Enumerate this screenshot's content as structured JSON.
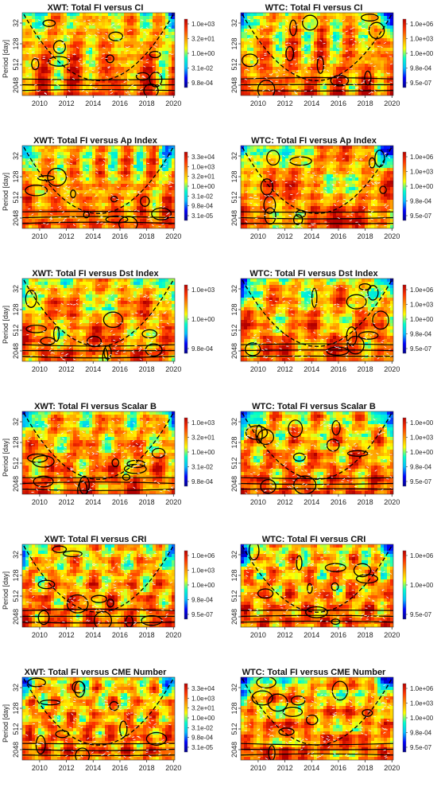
{
  "colors": {
    "scale": [
      "#00008b",
      "#0000ff",
      "#00bfff",
      "#00ffcc",
      "#ffff00",
      "#ff9900",
      "#ff3300",
      "#b30000"
    ],
    "contour": "#000000",
    "arrow": "#f0f0f0"
  },
  "chart_data": [
    {
      "type": "heatmap",
      "title": "XWT: Total FI versus CI",
      "ylabel": "Period [day]",
      "x_ticks": [
        "2010",
        "2012",
        "2014",
        "2016",
        "2018",
        "2020"
      ],
      "x_range": [
        2008.7,
        2020.1
      ],
      "y_ticks": [
        "32",
        "128",
        "512",
        "2048"
      ],
      "y_scale": "log2",
      "colorbar": [
        "1.0e+03",
        "3.2e+01",
        "1.0e+00",
        "3.1e-02",
        "9.8e-04"
      ],
      "cone_of_influence": true
    },
    {
      "type": "heatmap",
      "title": "WTC: Total FI versus CI",
      "ylabel": "",
      "x_ticks": [
        "2010",
        "2012",
        "2014",
        "2016",
        "2018",
        "2020"
      ],
      "x_range": [
        2008.7,
        2020.1
      ],
      "y_ticks": [
        "32",
        "128",
        "512",
        "2048"
      ],
      "y_scale": "log2",
      "colorbar": [
        "1.0e+06",
        "1.0e+03",
        "1.0e+00",
        "9.8e-04",
        "9.5e-07"
      ],
      "cone_of_influence": true
    },
    {
      "type": "heatmap",
      "title": "XWT: Total FI versus Ap Index",
      "ylabel": "Period [day]",
      "x_ticks": [
        "2010",
        "2012",
        "2014",
        "2016",
        "2018",
        "2020"
      ],
      "x_range": [
        2008.7,
        2020.1
      ],
      "y_ticks": [
        "32",
        "128",
        "512",
        "2048"
      ],
      "y_scale": "log2",
      "colorbar": [
        "3.3e+04",
        "1.0e+03",
        "3.2e+01",
        "1.0e+00",
        "3.1e-02",
        "9.8e-04",
        "3.1e-05"
      ],
      "cone_of_influence": true
    },
    {
      "type": "heatmap",
      "title": "WTC: Total FI versus Ap Index",
      "ylabel": "",
      "x_ticks": [
        "2010",
        "2012",
        "2014",
        "2016",
        "2018",
        "2020"
      ],
      "x_range": [
        2008.7,
        2020.1
      ],
      "y_ticks": [
        "32",
        "128",
        "512",
        "2048"
      ],
      "y_scale": "log2",
      "colorbar": [
        "1.0e+06",
        "1.0e+03",
        "1.0e+00",
        "9.8e-04",
        "9.5e-07"
      ],
      "cone_of_influence": true
    },
    {
      "type": "heatmap",
      "title": "XWT: Total FI versus Dst Index",
      "ylabel": "Period [day]",
      "x_ticks": [
        "2010",
        "2012",
        "2014",
        "2016",
        "2018",
        "2020"
      ],
      "x_range": [
        2008.7,
        2020.1
      ],
      "y_ticks": [
        "32",
        "128",
        "512",
        "2048"
      ],
      "y_scale": "log2",
      "colorbar": [
        "1.0e+03",
        "1.0e+00",
        "9.8e-04"
      ],
      "cone_of_influence": true
    },
    {
      "type": "heatmap",
      "title": "WTC: Total FI versus Dst Index",
      "ylabel": "",
      "x_ticks": [
        "2010",
        "2012",
        "2014",
        "2016",
        "2018",
        "2020"
      ],
      "x_range": [
        2008.7,
        2020.1
      ],
      "y_ticks": [
        "32",
        "128",
        "512",
        "2048"
      ],
      "y_scale": "log2",
      "colorbar": [
        "1.0e+06",
        "1.0e+03",
        "1.0e+00",
        "9.8e-04",
        "9.5e-07"
      ],
      "cone_of_influence": true
    },
    {
      "type": "heatmap",
      "title": "XWT: Total FI versus Scalar B",
      "ylabel": "Period [day]",
      "x_ticks": [
        "2010",
        "2012",
        "2014",
        "2016",
        "2018",
        "2020"
      ],
      "x_range": [
        2008.7,
        2020.1
      ],
      "y_ticks": [
        "32",
        "128",
        "512",
        "2048"
      ],
      "y_scale": "log2",
      "colorbar": [
        "1.0e+03",
        "3.2e+01",
        "1.0e+00",
        "3.1e-02",
        "9.8e-04"
      ],
      "cone_of_influence": true
    },
    {
      "type": "heatmap",
      "title": "WTC: Total FI versus Scalar B",
      "ylabel": "",
      "x_ticks": [
        "2010",
        "2012",
        "2014",
        "2016",
        "2018",
        "2020"
      ],
      "x_range": [
        2008.7,
        2020.1
      ],
      "y_ticks": [
        "32",
        "128",
        "512",
        "2048"
      ],
      "y_scale": "log2",
      "colorbar": [
        "1.0e+00",
        "1.0e+03",
        "1.0e+00",
        "9.8e-04",
        "9.5e-07"
      ],
      "cone_of_influence": true
    },
    {
      "type": "heatmap",
      "title": "XWT: Total FI versus CRI",
      "ylabel": "Period [day]",
      "x_ticks": [
        "2010",
        "2012",
        "2014",
        "2016",
        "2018",
        "2020"
      ],
      "x_range": [
        2008.7,
        2020.1
      ],
      "y_ticks": [
        "32",
        "128",
        "512",
        "2048"
      ],
      "y_scale": "log2",
      "colorbar": [
        "1.0e+06",
        "1.0e+03",
        "1.0e+00",
        "9.8e-04",
        "9.5e-07"
      ],
      "cone_of_influence": true
    },
    {
      "type": "heatmap",
      "title": "WTC: Total FI versus CRI",
      "ylabel": "",
      "x_ticks": [
        "2010",
        "2012",
        "2014",
        "2016",
        "2018",
        "2020"
      ],
      "x_range": [
        2008.7,
        2020.1
      ],
      "y_ticks": [
        "32",
        "128",
        "512",
        "2048"
      ],
      "y_scale": "log2",
      "colorbar": [
        "1.0e+06",
        "1.0e+00",
        "9.5e-07"
      ],
      "cone_of_influence": true
    },
    {
      "type": "heatmap",
      "title": "XWT: Total FI versus CME Number",
      "ylabel": "Period [day]",
      "x_ticks": [
        "2010",
        "2012",
        "2014",
        "2016",
        "2018",
        "2020"
      ],
      "x_range": [
        2008.7,
        2020.1
      ],
      "y_ticks": [
        "32",
        "128",
        "512",
        "2048"
      ],
      "y_scale": "log2",
      "colorbar": [
        "3.3e+04",
        "1.0e+03",
        "3.2e+01",
        "1.0e+00",
        "3.1e-02",
        "9.8e-04",
        "3.1e-05"
      ],
      "cone_of_influence": true
    },
    {
      "type": "heatmap",
      "title": "WTC: Total FI versus CME Number",
      "ylabel": "",
      "x_ticks": [
        "2010",
        "2012",
        "2014",
        "2016",
        "2018",
        "2020"
      ],
      "x_range": [
        2008.7,
        2020.1
      ],
      "y_ticks": [
        "32",
        "128",
        "512",
        "2048"
      ],
      "y_scale": "log2",
      "colorbar": [
        "1.0e+06",
        "1.0e+03",
        "1.0e+00",
        "9.8e-04",
        "9.5e-07"
      ],
      "cone_of_influence": true
    }
  ]
}
